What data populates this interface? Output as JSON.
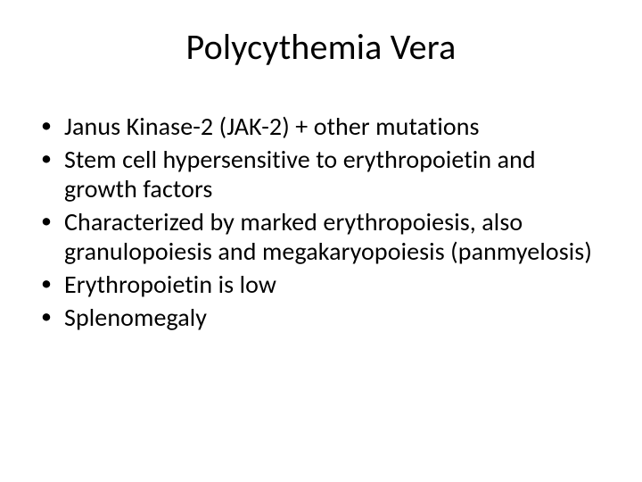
{
  "slide": {
    "title": "Polycythemia Vera",
    "title_fontsize": 40,
    "body_fontsize": 28,
    "background_color": "#ffffff",
    "text_color": "#000000",
    "font_family": "Calibri",
    "bullets": [
      "Janus Kinase-2 (JAK-2) + other mutations",
      "Stem cell hypersensitive to erythropoietin and growth factors",
      "Characterized by marked erythropoiesis, also granulopoiesis and megakaryopoiesis (panmyelosis)",
      "Erythropoietin is low",
      "Splenomegaly"
    ]
  }
}
